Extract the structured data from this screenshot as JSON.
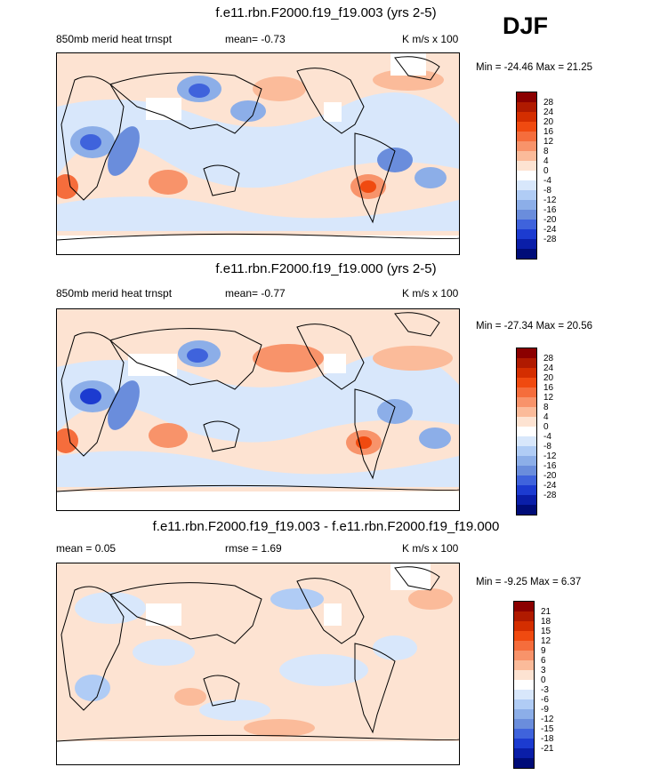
{
  "season": "DJF",
  "panels": [
    {
      "title": "f.e11.rbn.F2000.f19_f19.003 (yrs 2-5)",
      "left_label": "850mb merid heat trnspt",
      "center_label": "mean=  -0.73",
      "units": "K m/s x 100",
      "minmax": "Min = -24.46 Max =  21.25",
      "colorbar_labels": [
        "28",
        "24",
        "20",
        "16",
        "12",
        "8",
        "4",
        "0",
        "-4",
        "-8",
        "-12",
        "-16",
        "-20",
        "-24",
        "-28"
      ]
    },
    {
      "title": "f.e11.rbn.F2000.f19_f19.000 (yrs 2-5)",
      "left_label": "850mb merid heat trnspt",
      "center_label": "mean=  -0.77",
      "units": "K m/s x 100",
      "minmax": "Min = -27.34 Max =  20.56",
      "colorbar_labels": [
        "28",
        "24",
        "20",
        "16",
        "12",
        "8",
        "4",
        "0",
        "-4",
        "-8",
        "-12",
        "-16",
        "-20",
        "-24",
        "-28"
      ]
    },
    {
      "title": "f.e11.rbn.F2000.f19_f19.003 - f.e11.rbn.F2000.f19_f19.000",
      "left_label": "mean =   0.05",
      "center_label": "rmse =   1.69",
      "units": "K m/s x 100",
      "minmax": "Min =  -9.25 Max =   6.37",
      "colorbar_labels": [
        "21",
        "18",
        "15",
        "12",
        "9",
        "6",
        "3",
        "0",
        "-3",
        "-6",
        "-9",
        "-12",
        "-15",
        "-18",
        "-21"
      ]
    }
  ],
  "colorbar_colors": [
    "#8b0000",
    "#b01a00",
    "#d42e00",
    "#f04a10",
    "#f56d3c",
    "#f8936a",
    "#fbbb9a",
    "#fde3d2",
    "#ffffff",
    "#d8e7fb",
    "#b0ccf5",
    "#8caee8",
    "#6a8ddc",
    "#3f63dc",
    "#1c3bd0",
    "#0a1ea8",
    "#000c78"
  ]
}
